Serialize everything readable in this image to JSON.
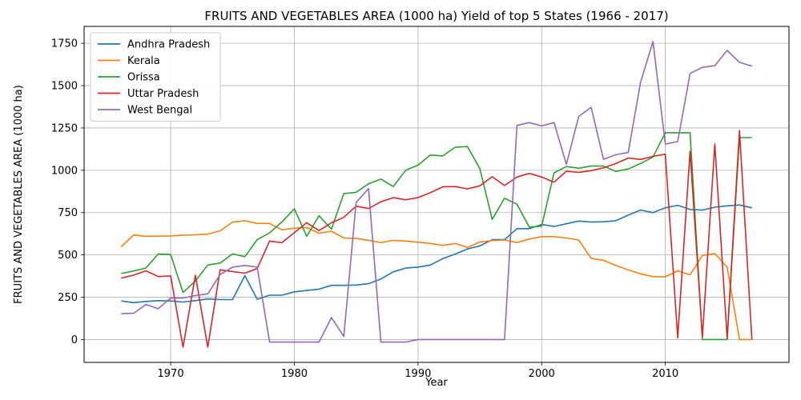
{
  "chart_data": {
    "type": "line",
    "title": "FRUITS AND VEGETABLES AREA (1000 ha) Yield of top 5 States (1966 - 2017)",
    "xlabel": "Year",
    "ylabel": "FRUITS AND VEGETABLES AREA (1000 ha)",
    "xlim": [
      1963,
      2020
    ],
    "ylim": [
      -135,
      1850
    ],
    "xticks": [
      1970,
      1980,
      1990,
      2000,
      2010
    ],
    "yticks": [
      0,
      250,
      500,
      750,
      1000,
      1250,
      1500,
      1750
    ],
    "grid": true,
    "legend_position": "top-left",
    "x": [
      1966,
      1967,
      1968,
      1969,
      1970,
      1971,
      1972,
      1973,
      1974,
      1975,
      1976,
      1977,
      1978,
      1979,
      1980,
      1981,
      1982,
      1983,
      1984,
      1985,
      1986,
      1987,
      1988,
      1989,
      1990,
      1991,
      1992,
      1993,
      1994,
      1995,
      1996,
      1997,
      1998,
      1999,
      2000,
      2001,
      2002,
      2003,
      2004,
      2005,
      2006,
      2007,
      2008,
      2009,
      2010,
      2011,
      2012,
      2013,
      2014,
      2015,
      2016,
      2017
    ],
    "series": [
      {
        "name": "Andhra Pradesh",
        "color": "#1f77b4",
        "values": [
          228,
          218,
          225,
          230,
          228,
          222,
          230,
          240,
          236,
          236,
          378,
          238,
          262,
          262,
          282,
          290,
          298,
          320,
          320,
          322,
          330,
          358,
          400,
          422,
          428,
          440,
          478,
          505,
          535,
          553,
          590,
          590,
          655,
          655,
          680,
          668,
          684,
          700,
          694,
          696,
          702,
          735,
          765,
          750,
          778,
          793,
          768,
          765,
          782,
          790,
          795,
          778
        ]
      },
      {
        "name": "Kerala",
        "color": "#ff7f0e",
        "values": [
          548,
          618,
          610,
          611,
          612,
          617,
          619,
          623,
          642,
          694,
          702,
          686,
          686,
          648,
          658,
          662,
          628,
          640,
          600,
          598,
          586,
          572,
          586,
          582,
          575,
          568,
          556,
          568,
          544,
          576,
          585,
          588,
          573,
          594,
          608,
          608,
          600,
          588,
          480,
          468,
          438,
          412,
          388,
          372,
          370,
          406,
          382,
          496,
          508,
          428,
          0,
          0
        ]
      },
      {
        "name": "Orissa",
        "color": "#2ca02c",
        "values": [
          390,
          405,
          422,
          506,
          502,
          278,
          346,
          440,
          452,
          506,
          490,
          590,
          630,
          695,
          772,
          610,
          732,
          652,
          862,
          870,
          920,
          948,
          904,
          1000,
          1030,
          1090,
          1085,
          1136,
          1140,
          1010,
          710,
          835,
          800,
          664,
          670,
          985,
          1022,
          1012,
          1025,
          1025,
          993,
          1008,
          1040,
          1078,
          1222,
          1222,
          1222,
          0,
          0,
          0,
          1193,
          1193
        ]
      },
      {
        "name": "Uttar Pradesh",
        "color": "#d62728",
        "values": [
          363,
          380,
          406,
          372,
          376,
          -45,
          380,
          -45,
          412,
          402,
          392,
          420,
          582,
          572,
          632,
          690,
          644,
          690,
          722,
          788,
          774,
          814,
          838,
          826,
          838,
          868,
          902,
          904,
          890,
          908,
          962,
          910,
          960,
          982,
          960,
          930,
          994,
          988,
          998,
          1014,
          1040,
          1072,
          1064,
          1082,
          1095,
          10,
          1112,
          15,
          1155,
          5,
          1235,
          0
        ]
      },
      {
        "name": "West Bengal",
        "color": "#9467bd",
        "values": [
          153,
          155,
          207,
          182,
          246,
          245,
          260,
          270,
          384,
          428,
          438,
          428,
          -15,
          -15,
          -15,
          -15,
          -15,
          130,
          18,
          810,
          892,
          -15,
          -15,
          -15,
          0,
          0,
          0,
          0,
          0,
          0,
          0,
          0,
          1265,
          1282,
          1262,
          1282,
          1035,
          1318,
          1372,
          1065,
          1092,
          1105,
          1520,
          1760,
          1155,
          1170,
          1572,
          1608,
          1618,
          1708,
          1638,
          1615
        ]
      }
    ]
  }
}
